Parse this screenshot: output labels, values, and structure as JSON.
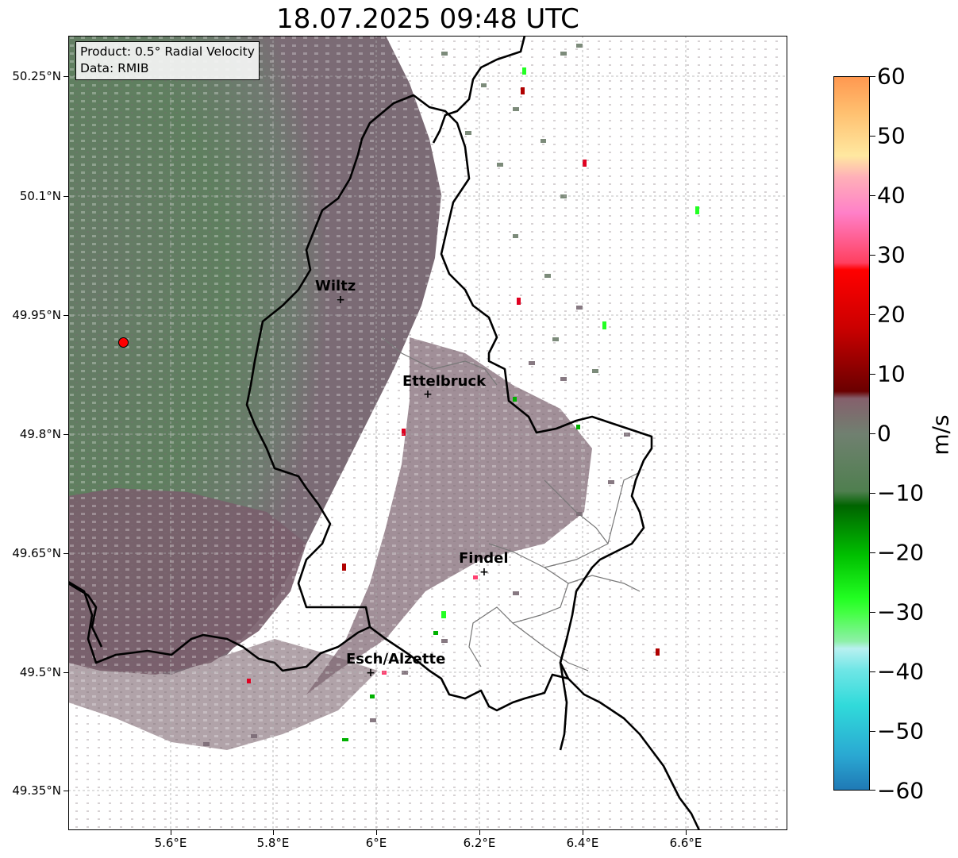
{
  "title": "18.07.2025 09:48 UTC",
  "info_box": {
    "product": "Product: 0.5° Radial Velocity",
    "data": "Data: RMIB"
  },
  "axes": {
    "lat_ticks": [
      "50.25°N",
      "50.1°N",
      "49.95°N",
      "49.8°N",
      "49.65°N",
      "49.5°N",
      "49.35°N"
    ],
    "lon_ticks": [
      "5.6°E",
      "5.8°E",
      "6°E",
      "6.2°E",
      "6.4°E",
      "6.6°E"
    ]
  },
  "cities": [
    {
      "name": "Wiltz"
    },
    {
      "name": "Ettelbruck"
    },
    {
      "name": "Findel"
    },
    {
      "name": "Esch/Alzette"
    }
  ],
  "colorbar": {
    "label": "m/s",
    "ticks": [
      "60",
      "50",
      "40",
      "30",
      "20",
      "10",
      "0",
      "−10",
      "−20",
      "−30",
      "−40",
      "−50",
      "−60"
    ],
    "stops": [
      "#1f77b4",
      "#2ab0d0",
      "#35dede",
      "#a8eef0",
      "#8ef0a8",
      "#22ff22",
      "#00c000",
      "#006400",
      "#607d60",
      "#7d6870",
      "#7a0000",
      "#e00000",
      "#ff5070",
      "#ff90c8",
      "#ffd8a0",
      "#ffe890",
      "#ff9850"
    ]
  },
  "icons": {
    "radar_site": "red-circle-marker",
    "city_marker": "plus-marker"
  }
}
